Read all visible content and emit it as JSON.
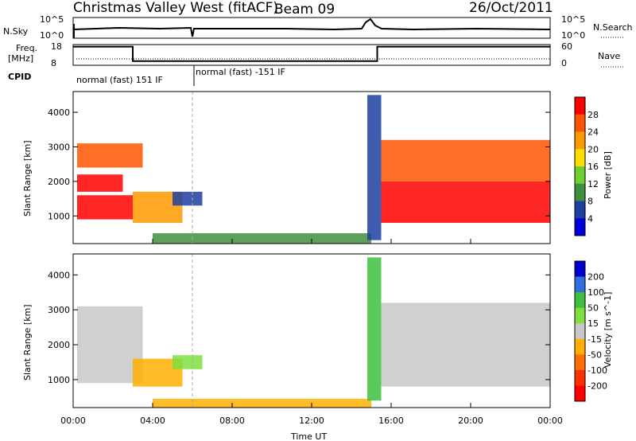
{
  "header": {
    "station": "Christmas Valley West (fitACF)",
    "beam": "Beam 09",
    "date": "26/Oct/2011"
  },
  "params": {
    "nsky_label": "N.Sky",
    "nsky_ticks": [
      "10^5",
      "10^0"
    ],
    "nsearch_label": "N.Search",
    "nsearch_ticks": [
      "10^5",
      "10^0"
    ],
    "freq_label_1": "Freq.",
    "freq_label_2": "[MHz]",
    "freq_ticks": [
      "18",
      "8"
    ],
    "nave_label": "Nave",
    "nave_ticks": [
      "60",
      "0"
    ],
    "cpid_label": "CPID",
    "cpid_segments": [
      {
        "start_hour": 0,
        "text": "normal (fast) 151 IF"
      },
      {
        "start_hour": 6,
        "text": "normal (fast) -151 IF"
      }
    ],
    "freq_steps": [
      {
        "start_hour": 0,
        "mhz": 17
      },
      {
        "start_hour": 3,
        "mhz": 10
      },
      {
        "start_hour": 15.3,
        "mhz": 17
      }
    ]
  },
  "chart_data": [
    {
      "type": "heatmap",
      "ylabel": "Slant Range [km]",
      "xlabel": "",
      "ylim": [
        200,
        4600
      ],
      "y_ticks": [
        1000,
        2000,
        3000,
        4000
      ],
      "xlim": [
        0,
        24
      ],
      "colorbar": {
        "label": "Power [dB]",
        "ticks": [
          "28",
          "24",
          "20",
          "16",
          "12",
          "8",
          "4"
        ],
        "colors": [
          "#ff0000",
          "#ff5500",
          "#ff9900",
          "#ffdd00",
          "#6fcf2f",
          "#3f8f3f",
          "#1f3fa0",
          "#0000dd"
        ]
      },
      "regions": [
        {
          "t0": 0.2,
          "t1": 3.0,
          "r0": 900,
          "r1": 1600,
          "level": 0
        },
        {
          "t0": 0.2,
          "t1": 2.5,
          "r0": 1700,
          "r1": 2200,
          "level": 0
        },
        {
          "t0": 0.2,
          "t1": 3.5,
          "r0": 2400,
          "r1": 3100,
          "level": 1
        },
        {
          "t0": 3.0,
          "t1": 5.5,
          "r0": 800,
          "r1": 1700,
          "level": 2
        },
        {
          "t0": 5.0,
          "t1": 6.5,
          "r0": 1300,
          "r1": 1700,
          "level": 6
        },
        {
          "t0": 4.0,
          "t1": 15.0,
          "r0": 200,
          "r1": 500,
          "level": 5
        },
        {
          "t0": 14.8,
          "t1": 15.5,
          "r0": 300,
          "r1": 4500,
          "level": 6
        },
        {
          "t0": 15.5,
          "t1": 24.0,
          "r0": 800,
          "r1": 2000,
          "level": 0
        },
        {
          "t0": 15.5,
          "t1": 24.0,
          "r0": 2000,
          "r1": 3200,
          "level": 1
        }
      ]
    },
    {
      "type": "heatmap",
      "ylabel": "Slant Range [km]",
      "xlabel": "Time UT",
      "ylim": [
        200,
        4600
      ],
      "y_ticks": [
        1000,
        2000,
        3000,
        4000
      ],
      "xlim": [
        0,
        24
      ],
      "x_ticks": [
        "00:00",
        "04:00",
        "08:00",
        "12:00",
        "16:00",
        "20:00",
        "00:00"
      ],
      "colorbar": {
        "label": "Velocity [m s^-1]",
        "ticks": [
          "200",
          "100",
          "50",
          "15",
          "-15",
          "-50",
          "-100",
          "-200"
        ],
        "colors": [
          "#0000cc",
          "#2f6fdf",
          "#3fbf3f",
          "#7fdf3f",
          "#c8c8c8",
          "#ffb000",
          "#ff7000",
          "#ff3000",
          "#ff0000"
        ]
      },
      "regions": [
        {
          "t0": 0.2,
          "t1": 3.5,
          "r0": 900,
          "r1": 3100,
          "level": 4
        },
        {
          "t0": 3.0,
          "t1": 5.5,
          "r0": 800,
          "r1": 1600,
          "level": 5
        },
        {
          "t0": 5.0,
          "t1": 6.5,
          "r0": 1300,
          "r1": 1700,
          "level": 3
        },
        {
          "t0": 4.0,
          "t1": 15.0,
          "r0": 200,
          "r1": 450,
          "level": 5
        },
        {
          "t0": 14.8,
          "t1": 15.5,
          "r0": 400,
          "r1": 4500,
          "level": 2
        },
        {
          "t0": 15.5,
          "t1": 24.0,
          "r0": 800,
          "r1": 3200,
          "level": 4
        }
      ]
    }
  ]
}
